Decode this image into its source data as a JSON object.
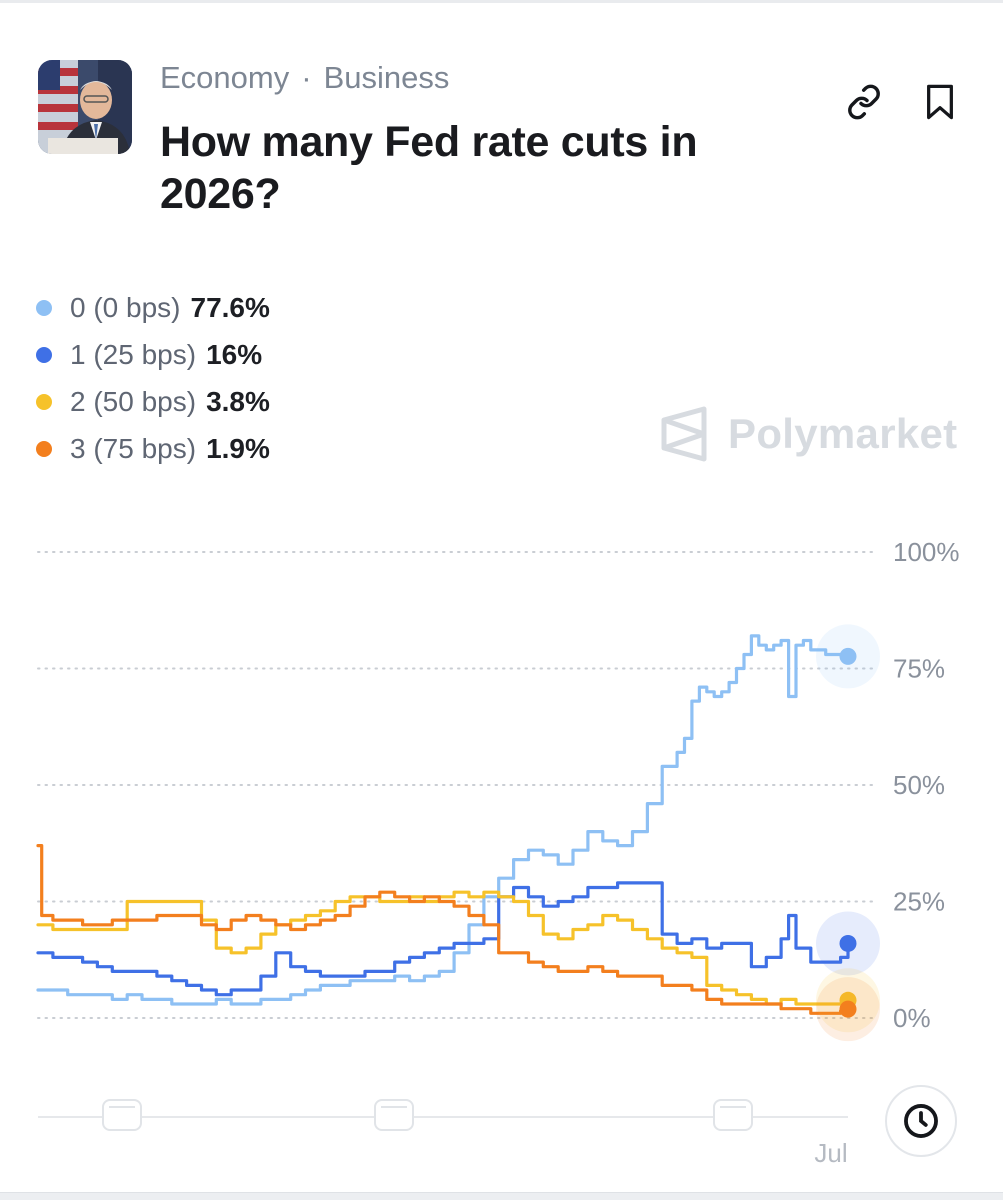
{
  "header": {
    "category": "Economy",
    "separator": "·",
    "subcategory": "Business",
    "title": "How many Fed rate cuts in 2026?"
  },
  "watermark": "Polymarket",
  "legend": [
    {
      "name": "0 (0 bps)",
      "value": "77.6%",
      "color": "#8ec0f4"
    },
    {
      "name": "1 (25 bps)",
      "value": "16%",
      "color": "#3f70e6"
    },
    {
      "name": "2 (50 bps)",
      "value": "3.8%",
      "color": "#f6c22a"
    },
    {
      "name": "3 (75 bps)",
      "value": "1.9%",
      "color": "#f37f1e"
    }
  ],
  "chart_data": {
    "type": "line",
    "y_ticks": [
      "100%",
      "75%",
      "50%",
      "25%",
      "0%"
    ],
    "ylim": [
      0,
      100
    ],
    "x_tick_labels": [
      "Jul"
    ],
    "grid": true,
    "series": [
      {
        "name": "0 (0 bps)",
        "color": "#8ec0f4",
        "points": [
          [
            0,
            6
          ],
          [
            2,
            6
          ],
          [
            4,
            5
          ],
          [
            6,
            5
          ],
          [
            8,
            5
          ],
          [
            10,
            4
          ],
          [
            12,
            5
          ],
          [
            14,
            4
          ],
          [
            16,
            4
          ],
          [
            18,
            3
          ],
          [
            20,
            3
          ],
          [
            22,
            3
          ],
          [
            24,
            4
          ],
          [
            26,
            3
          ],
          [
            28,
            3
          ],
          [
            30,
            4
          ],
          [
            32,
            4
          ],
          [
            34,
            5
          ],
          [
            36,
            6
          ],
          [
            38,
            7
          ],
          [
            40,
            7
          ],
          [
            42,
            8
          ],
          [
            44,
            8
          ],
          [
            46,
            8
          ],
          [
            48,
            9
          ],
          [
            50,
            8
          ],
          [
            52,
            9
          ],
          [
            54,
            10
          ],
          [
            56,
            14
          ],
          [
            58,
            20
          ],
          [
            60,
            26
          ],
          [
            62,
            30
          ],
          [
            64,
            34
          ],
          [
            66,
            36
          ],
          [
            68,
            35
          ],
          [
            70,
            33
          ],
          [
            72,
            36
          ],
          [
            74,
            40
          ],
          [
            76,
            38
          ],
          [
            78,
            37
          ],
          [
            80,
            40
          ],
          [
            82,
            46
          ],
          [
            84,
            54
          ],
          [
            86,
            57
          ],
          [
            87,
            60
          ],
          [
            88,
            68
          ],
          [
            89,
            71
          ],
          [
            90,
            70
          ],
          [
            91,
            69
          ],
          [
            92,
            70
          ],
          [
            93,
            72
          ],
          [
            94,
            75
          ],
          [
            95,
            78
          ],
          [
            96,
            82
          ],
          [
            97,
            80
          ],
          [
            98,
            79
          ],
          [
            99,
            80
          ],
          [
            100,
            81
          ],
          [
            101,
            69
          ],
          [
            102,
            80
          ],
          [
            103,
            81
          ],
          [
            104,
            79
          ],
          [
            106,
            78
          ],
          [
            108,
            78
          ],
          [
            109,
            77.6
          ]
        ]
      },
      {
        "name": "1 (25 bps)",
        "color": "#3f70e6",
        "points": [
          [
            0,
            14
          ],
          [
            2,
            13
          ],
          [
            4,
            13
          ],
          [
            6,
            12
          ],
          [
            8,
            11
          ],
          [
            10,
            10
          ],
          [
            12,
            10
          ],
          [
            14,
            10
          ],
          [
            16,
            9
          ],
          [
            18,
            8
          ],
          [
            20,
            7
          ],
          [
            22,
            6
          ],
          [
            24,
            5
          ],
          [
            26,
            6
          ],
          [
            28,
            6
          ],
          [
            30,
            9
          ],
          [
            32,
            14
          ],
          [
            34,
            11
          ],
          [
            36,
            10
          ],
          [
            38,
            9
          ],
          [
            40,
            9
          ],
          [
            42,
            9
          ],
          [
            44,
            10
          ],
          [
            46,
            10
          ],
          [
            48,
            12
          ],
          [
            50,
            13
          ],
          [
            52,
            14
          ],
          [
            54,
            15
          ],
          [
            56,
            16
          ],
          [
            58,
            16
          ],
          [
            60,
            17
          ],
          [
            62,
            26
          ],
          [
            64,
            28
          ],
          [
            66,
            26
          ],
          [
            68,
            24
          ],
          [
            70,
            25
          ],
          [
            72,
            26
          ],
          [
            74,
            28
          ],
          [
            76,
            28
          ],
          [
            78,
            29
          ],
          [
            80,
            29
          ],
          [
            82,
            29
          ],
          [
            84,
            18
          ],
          [
            86,
            16
          ],
          [
            88,
            17
          ],
          [
            90,
            15
          ],
          [
            92,
            16
          ],
          [
            94,
            16
          ],
          [
            96,
            11
          ],
          [
            98,
            13
          ],
          [
            100,
            17
          ],
          [
            101,
            22
          ],
          [
            102,
            15
          ],
          [
            104,
            12
          ],
          [
            106,
            12
          ],
          [
            108,
            13
          ],
          [
            109,
            16
          ]
        ]
      },
      {
        "name": "2 (50 bps)",
        "color": "#f6c22a",
        "points": [
          [
            0,
            20
          ],
          [
            2,
            19
          ],
          [
            4,
            19
          ],
          [
            6,
            19
          ],
          [
            8,
            19
          ],
          [
            10,
            19
          ],
          [
            12,
            25
          ],
          [
            14,
            25
          ],
          [
            16,
            25
          ],
          [
            18,
            25
          ],
          [
            20,
            25
          ],
          [
            22,
            21
          ],
          [
            24,
            15
          ],
          [
            26,
            14
          ],
          [
            28,
            15
          ],
          [
            30,
            18
          ],
          [
            32,
            20
          ],
          [
            34,
            21
          ],
          [
            36,
            22
          ],
          [
            38,
            23
          ],
          [
            40,
            25
          ],
          [
            42,
            26
          ],
          [
            44,
            26
          ],
          [
            46,
            25
          ],
          [
            48,
            25
          ],
          [
            50,
            26
          ],
          [
            52,
            25
          ],
          [
            54,
            26
          ],
          [
            56,
            27
          ],
          [
            58,
            26
          ],
          [
            60,
            27
          ],
          [
            62,
            26
          ],
          [
            64,
            25
          ],
          [
            66,
            22
          ],
          [
            68,
            18
          ],
          [
            70,
            17
          ],
          [
            72,
            19
          ],
          [
            74,
            20
          ],
          [
            76,
            22
          ],
          [
            78,
            21
          ],
          [
            80,
            19
          ],
          [
            82,
            17
          ],
          [
            84,
            15
          ],
          [
            86,
            14
          ],
          [
            88,
            13
          ],
          [
            90,
            7
          ],
          [
            92,
            6
          ],
          [
            94,
            5
          ],
          [
            96,
            4
          ],
          [
            98,
            3
          ],
          [
            100,
            4
          ],
          [
            102,
            3
          ],
          [
            104,
            3
          ],
          [
            106,
            3
          ],
          [
            108,
            3
          ],
          [
            109,
            3.8
          ]
        ]
      },
      {
        "name": "3 (75 bps)",
        "color": "#f37f1e",
        "points": [
          [
            0,
            37
          ],
          [
            0.5,
            22
          ],
          [
            2,
            21
          ],
          [
            4,
            21
          ],
          [
            6,
            20
          ],
          [
            8,
            20
          ],
          [
            10,
            21
          ],
          [
            12,
            21
          ],
          [
            14,
            21
          ],
          [
            16,
            22
          ],
          [
            18,
            22
          ],
          [
            20,
            22
          ],
          [
            22,
            20
          ],
          [
            24,
            19
          ],
          [
            26,
            21
          ],
          [
            28,
            22
          ],
          [
            30,
            21
          ],
          [
            32,
            20
          ],
          [
            34,
            19
          ],
          [
            36,
            20
          ],
          [
            38,
            21
          ],
          [
            40,
            22
          ],
          [
            42,
            24
          ],
          [
            44,
            26
          ],
          [
            46,
            27
          ],
          [
            48,
            26
          ],
          [
            50,
            25
          ],
          [
            52,
            26
          ],
          [
            54,
            25
          ],
          [
            56,
            24
          ],
          [
            58,
            22
          ],
          [
            60,
            20
          ],
          [
            62,
            14
          ],
          [
            64,
            14
          ],
          [
            66,
            12
          ],
          [
            68,
            11
          ],
          [
            70,
            10
          ],
          [
            72,
            10
          ],
          [
            74,
            11
          ],
          [
            76,
            10
          ],
          [
            78,
            9
          ],
          [
            80,
            9
          ],
          [
            82,
            9
          ],
          [
            84,
            7
          ],
          [
            86,
            7
          ],
          [
            88,
            6
          ],
          [
            90,
            4
          ],
          [
            92,
            3
          ],
          [
            94,
            3
          ],
          [
            96,
            3
          ],
          [
            98,
            3
          ],
          [
            100,
            2
          ],
          [
            102,
            2
          ],
          [
            104,
            1
          ],
          [
            106,
            1
          ],
          [
            108,
            1.5
          ],
          [
            109,
            1.9
          ]
        ]
      }
    ]
  }
}
